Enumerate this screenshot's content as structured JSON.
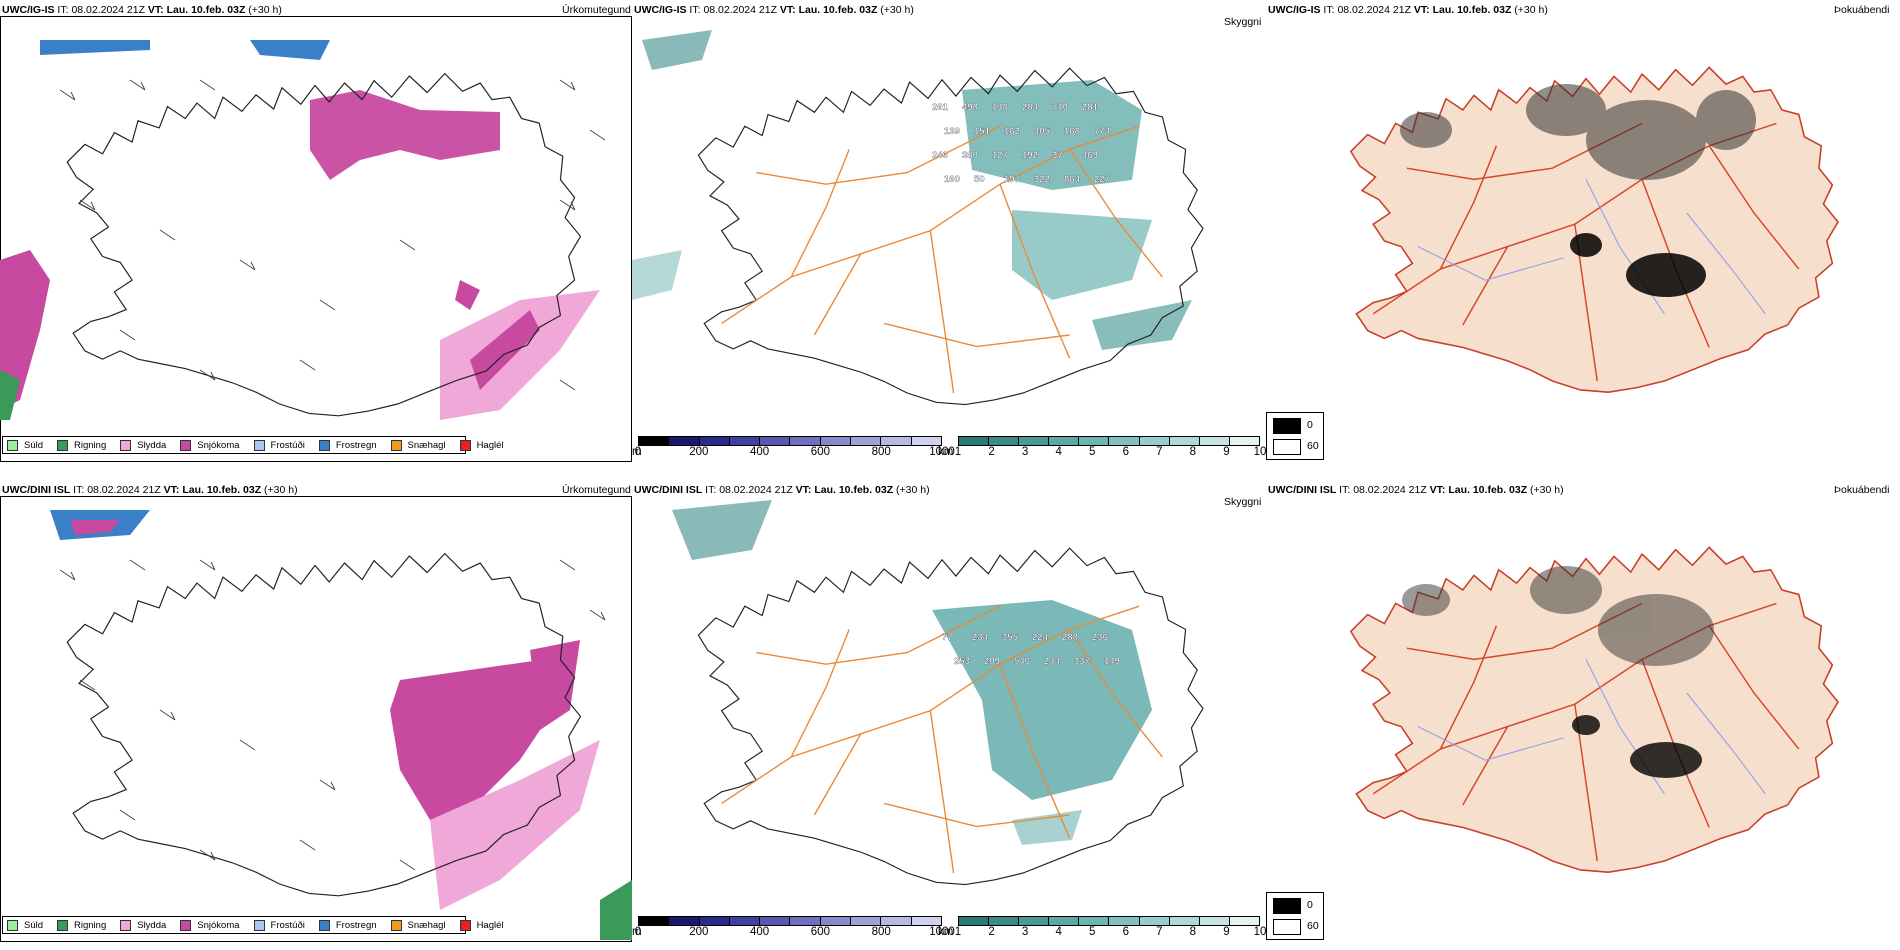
{
  "rows": [
    {
      "model": "UWC/IG-IS",
      "it_label": "IT:",
      "it_value": "08.02.2024 21Z",
      "vt_label": "VT:",
      "vt_value": "Lau. 10.feb. 03Z",
      "lead": "(+30 h)",
      "panel1_right": "Úrkomutegund",
      "panel2_right": "Skyggni",
      "panel3_right": "Þokuábendi",
      "cloud_labels": [
        "261",
        "498",
        "148",
        "284",
        "710",
        "281",
        "139",
        "151",
        "162",
        "405",
        "168",
        "774",
        "246",
        "380",
        "127",
        "192",
        "37",
        "469",
        "160",
        "50",
        "197",
        "322",
        "864",
        "227"
      ]
    },
    {
      "model": "UWC/DINI ISL",
      "it_label": "IT:",
      "it_value": "08.02.2024 21Z",
      "vt_label": "VT:",
      "vt_value": "Lau. 10.feb. 03Z",
      "lead": "(+30 h)",
      "panel1_right": "Úrkomutegund",
      "panel2_right": "Skyggni",
      "panel3_right": "Þokuábendi",
      "cloud_labels": [
        "77",
        "234",
        "355",
        "224",
        "288",
        "236",
        "253",
        "209",
        "546",
        "244",
        "337",
        "149"
      ]
    }
  ],
  "precip_legend": [
    {
      "label": "Súld",
      "color": "#98f098"
    },
    {
      "label": "Rigning",
      "color": "#3a9a5a"
    },
    {
      "label": "Slydda",
      "color": "#f0a8d8"
    },
    {
      "label": "Snjókoma",
      "color": "#c84aa0"
    },
    {
      "label": "Frostúði",
      "color": "#a8c8f0"
    },
    {
      "label": "Frostregn",
      "color": "#3a80c8"
    },
    {
      "label": "Snæhagl",
      "color": "#f09a20"
    },
    {
      "label": "Haglél",
      "color": "#e82020"
    }
  ],
  "ceiling_bar": {
    "unit": "m",
    "ticks": [
      "0",
      "200",
      "400",
      "600",
      "800",
      "1000"
    ],
    "colors": [
      "#000000",
      "#1a1a6a",
      "#2a2a8a",
      "#4040a0",
      "#5858b0",
      "#7070c0",
      "#8888cc",
      "#a0a0d8",
      "#b8b8e4",
      "#d0d0f0"
    ]
  },
  "vis_bar": {
    "unit": "km",
    "ticks": [
      "1",
      "2",
      "3",
      "4",
      "5",
      "6",
      "7",
      "8",
      "9",
      "10"
    ],
    "colors": [
      "#2a7a78",
      "#3a8a88",
      "#4a9a98",
      "#5aa8a6",
      "#6cb4b2",
      "#80c0be",
      "#98ccca",
      "#b0d8d6",
      "#c8e4e2",
      "#e4f2f0"
    ]
  },
  "fog_legend": [
    {
      "value": "0",
      "color": "#000000"
    },
    {
      "value": "60",
      "color": "#ffffff"
    }
  ]
}
